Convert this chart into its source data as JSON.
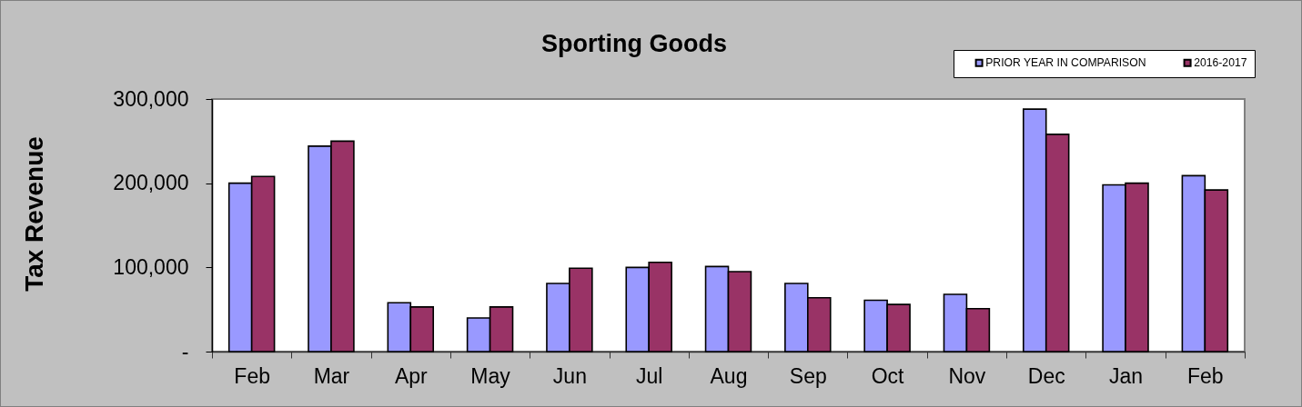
{
  "chart_data": {
    "type": "bar",
    "title": "Sporting Goods",
    "ylabel": "Tax Revenue",
    "categories": [
      "Feb",
      "Mar",
      "Apr",
      "May",
      "Jun",
      "Jul",
      "Aug",
      "Sep",
      "Oct",
      "Nov",
      "Dec",
      "Jan",
      "Feb"
    ],
    "series": [
      {
        "name": "PRIOR YEAR IN COMPARISON",
        "color": "#9999ff",
        "values": [
          200000,
          244000,
          58000,
          40000,
          81000,
          100000,
          101000,
          81000,
          61000,
          68000,
          288000,
          198000,
          209000
        ]
      },
      {
        "name": "2016-2017",
        "color": "#993366",
        "values": [
          208000,
          250000,
          53000,
          53000,
          99000,
          106000,
          95000,
          64000,
          56000,
          51000,
          258000,
          200000,
          192000
        ]
      }
    ],
    "ylim": [
      0,
      300000
    ],
    "yticks": [
      {
        "value": 0,
        "label": "-"
      },
      {
        "value": 100000,
        "label": "100,000"
      },
      {
        "value": 200000,
        "label": "200,000"
      },
      {
        "value": 300000,
        "label": "300,000"
      }
    ],
    "legend": "top right"
  }
}
